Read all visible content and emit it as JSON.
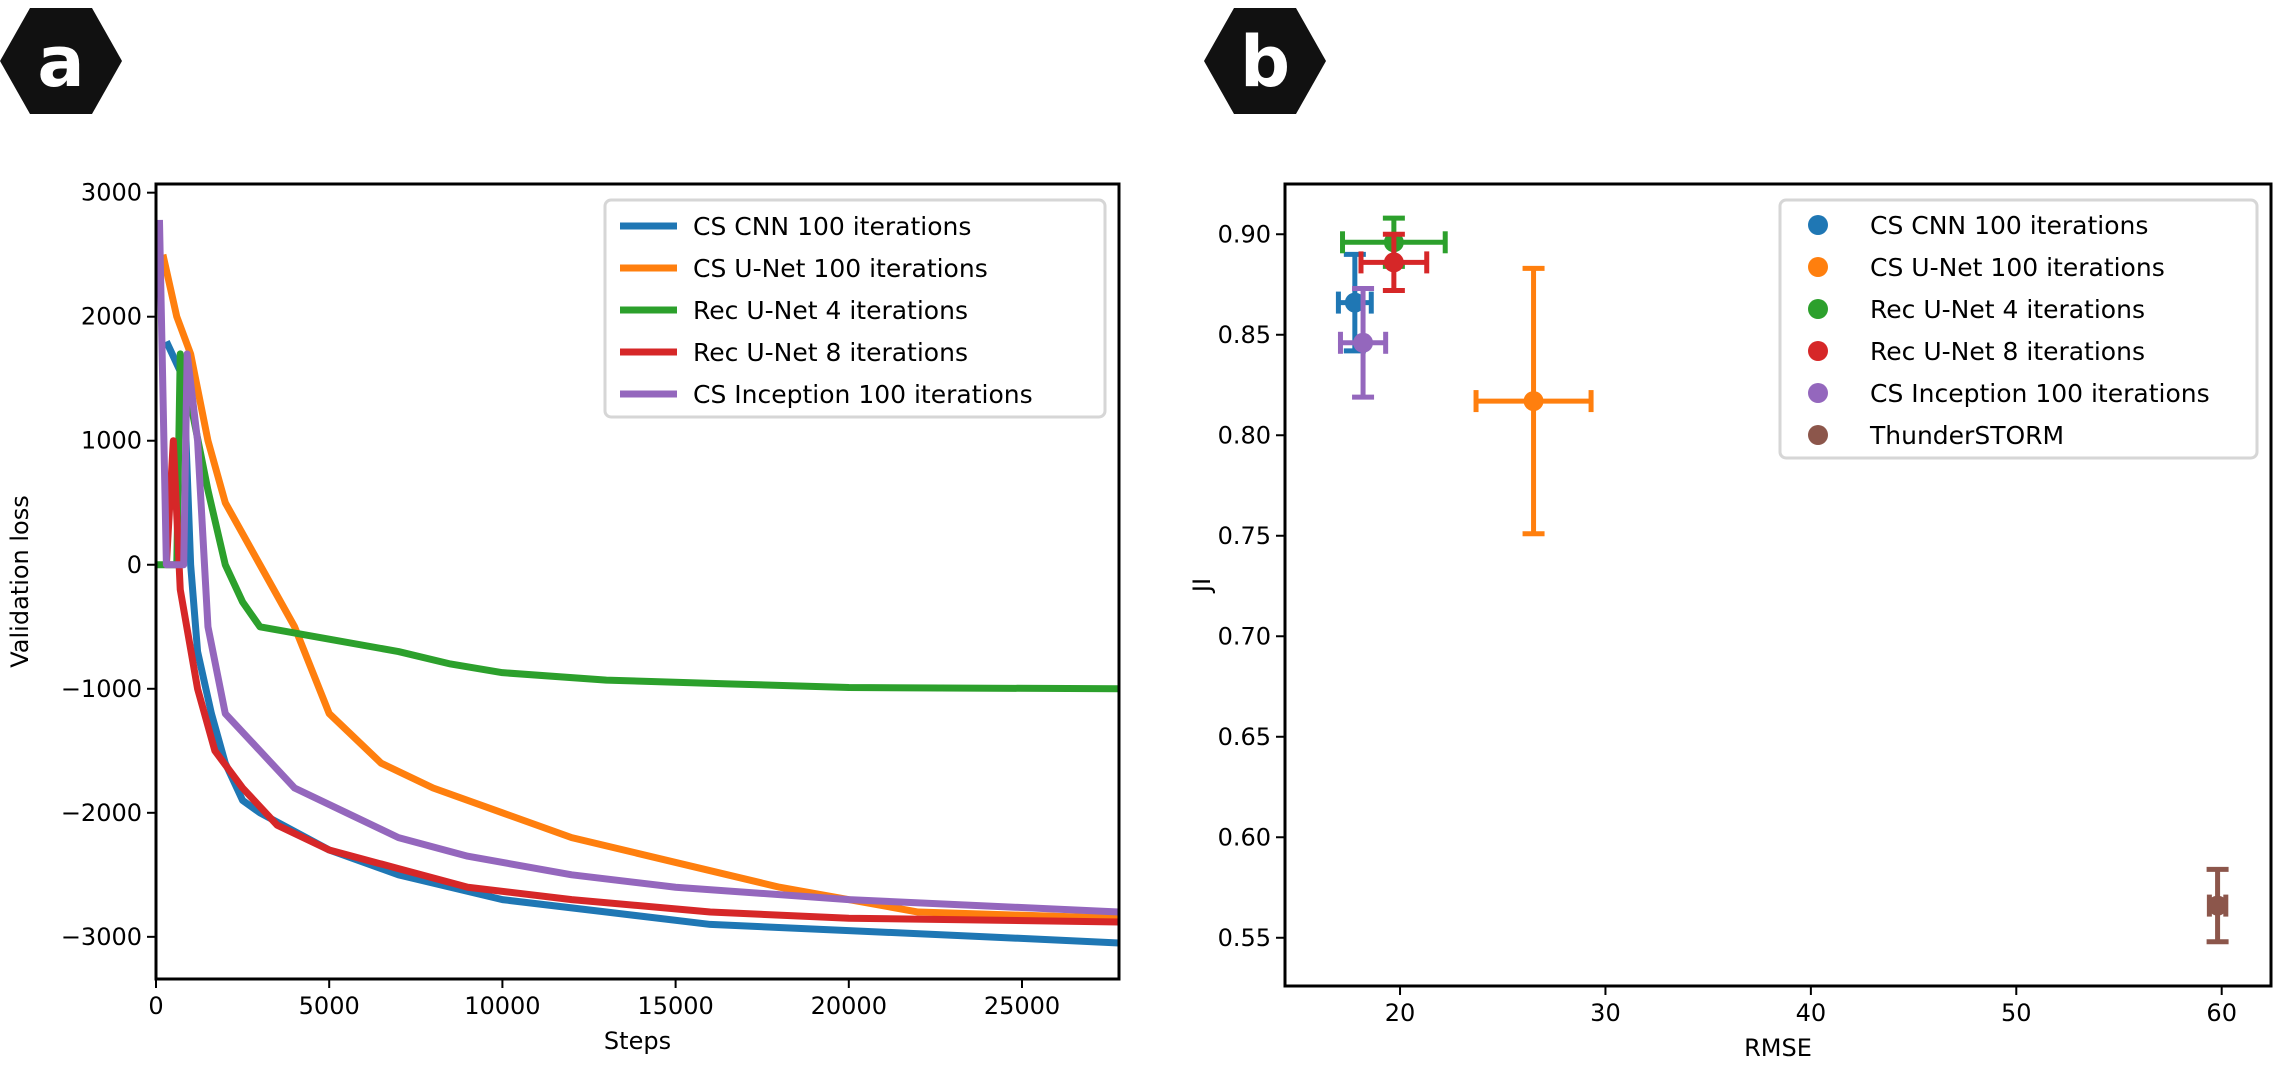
{
  "badges": {
    "a": "a",
    "b": "b"
  },
  "chart_data": [
    {
      "type": "line",
      "panel": "a",
      "xlabel": "Steps",
      "ylabel": "Validation loss",
      "xlim": [
        0,
        27800
      ],
      "ylim": [
        -3340,
        3070
      ],
      "xticks": [
        0,
        5000,
        10000,
        15000,
        20000,
        25000
      ],
      "yticks": [
        3000,
        2000,
        1000,
        0,
        -1000,
        -2000,
        -3000
      ],
      "xtick_labels": [
        "0",
        "5000",
        "10000",
        "15000",
        "20000",
        "25000"
      ],
      "ytick_labels": [
        "3000",
        "2000",
        "1000",
        "0",
        "−1000",
        "−2000",
        "−3000"
      ],
      "grid": false,
      "legend": "top-right",
      "series": [
        {
          "name": "CS CNN 100 iterations",
          "color": "#1f77b4",
          "x": [
            300,
            800,
            1000,
            1200,
            1600,
            2000,
            2500,
            3000,
            5000,
            7000,
            10000,
            13000,
            16000,
            20000,
            24000,
            27800
          ],
          "y": [
            1800,
            1500,
            0,
            -700,
            -1200,
            -1600,
            -1900,
            -2000,
            -2300,
            -2500,
            -2700,
            -2800,
            -2900,
            -2950,
            -3000,
            -3050
          ]
        },
        {
          "name": "CS U-Net 100 iterations",
          "color": "#ff7f0e",
          "x": [
            200,
            600,
            1000,
            1500,
            2000,
            3000,
            4000,
            5000,
            6500,
            8000,
            10000,
            12000,
            15000,
            18000,
            22000,
            27800
          ],
          "y": [
            2500,
            2000,
            1700,
            1000,
            500,
            0,
            -500,
            -1200,
            -1600,
            -1800,
            -2000,
            -2200,
            -2400,
            -2600,
            -2800,
            -2850
          ]
        },
        {
          "name": "Rec U-Net 4 iterations",
          "color": "#2ca02c",
          "x": [
            0,
            600,
            700,
            1000,
            1500,
            2000,
            2500,
            3000,
            5000,
            7000,
            8500,
            10000,
            13000,
            16500,
            20000,
            27800
          ],
          "y": [
            0,
            0,
            1700,
            1300,
            600,
            0,
            -300,
            -500,
            -600,
            -700,
            -800,
            -870,
            -930,
            -960,
            -990,
            -1000
          ]
        },
        {
          "name": "Rec U-Net 8 iterations",
          "color": "#d62728",
          "x": [
            300,
            500,
            700,
            1200,
            1700,
            2500,
            3500,
            5000,
            7000,
            9000,
            12000,
            16000,
            20000,
            27800
          ],
          "y": [
            0,
            1000,
            -200,
            -1000,
            -1500,
            -1800,
            -2100,
            -2300,
            -2450,
            -2600,
            -2700,
            -2800,
            -2850,
            -2880
          ]
        },
        {
          "name": "CS Inception 100 iterations",
          "color": "#9467bd",
          "x": [
            100,
            300,
            800,
            900,
            1200,
            1500,
            2000,
            3000,
            4000,
            5500,
            7000,
            9000,
            12000,
            15000,
            20000,
            27800
          ],
          "y": [
            2780,
            0,
            0,
            1700,
            1000,
            -500,
            -1200,
            -1500,
            -1800,
            -2000,
            -2200,
            -2350,
            -2500,
            -2600,
            -2700,
            -2800
          ]
        }
      ]
    },
    {
      "type": "scatter",
      "panel": "b",
      "xlabel": "RMSE",
      "ylabel": "JI",
      "xlim": [
        14.4,
        62.4
      ],
      "ylim": [
        0.526,
        0.925
      ],
      "xticks": [
        20,
        30,
        40,
        50,
        60
      ],
      "yticks": [
        0.55,
        0.6,
        0.65,
        0.7,
        0.75,
        0.8,
        0.85,
        0.9
      ],
      "xtick_labels": [
        "20",
        "30",
        "40",
        "50",
        "60"
      ],
      "ytick_labels": [
        "0.55",
        "0.60",
        "0.65",
        "0.70",
        "0.75",
        "0.80",
        "0.85",
        "0.90"
      ],
      "grid": false,
      "legend": "top-right",
      "series": [
        {
          "name": "CS CNN 100 iterations",
          "color": "#1f77b4",
          "x": 17.8,
          "y": 0.866,
          "xerr": 0.8,
          "yerr": 0.024
        },
        {
          "name": "CS U-Net 100 iterations",
          "color": "#ff7f0e",
          "x": 26.5,
          "y": 0.817,
          "xerr": 2.8,
          "yerr": 0.066
        },
        {
          "name": "Rec U-Net 4 iterations",
          "color": "#2ca02c",
          "x": 19.7,
          "y": 0.896,
          "xerr": 2.5,
          "yerr": 0.012
        },
        {
          "name": "Rec U-Net 8 iterations",
          "color": "#d62728",
          "x": 19.7,
          "y": 0.886,
          "xerr": 1.6,
          "yerr": 0.014
        },
        {
          "name": "CS Inception 100 iterations",
          "color": "#9467bd",
          "x": 18.2,
          "y": 0.846,
          "xerr": 1.1,
          "yerr": 0.027
        },
        {
          "name": "ThunderSTORM",
          "color": "#8c564b",
          "x": 59.8,
          "y": 0.566,
          "xerr": 0.4,
          "yerr": 0.018
        }
      ]
    }
  ]
}
